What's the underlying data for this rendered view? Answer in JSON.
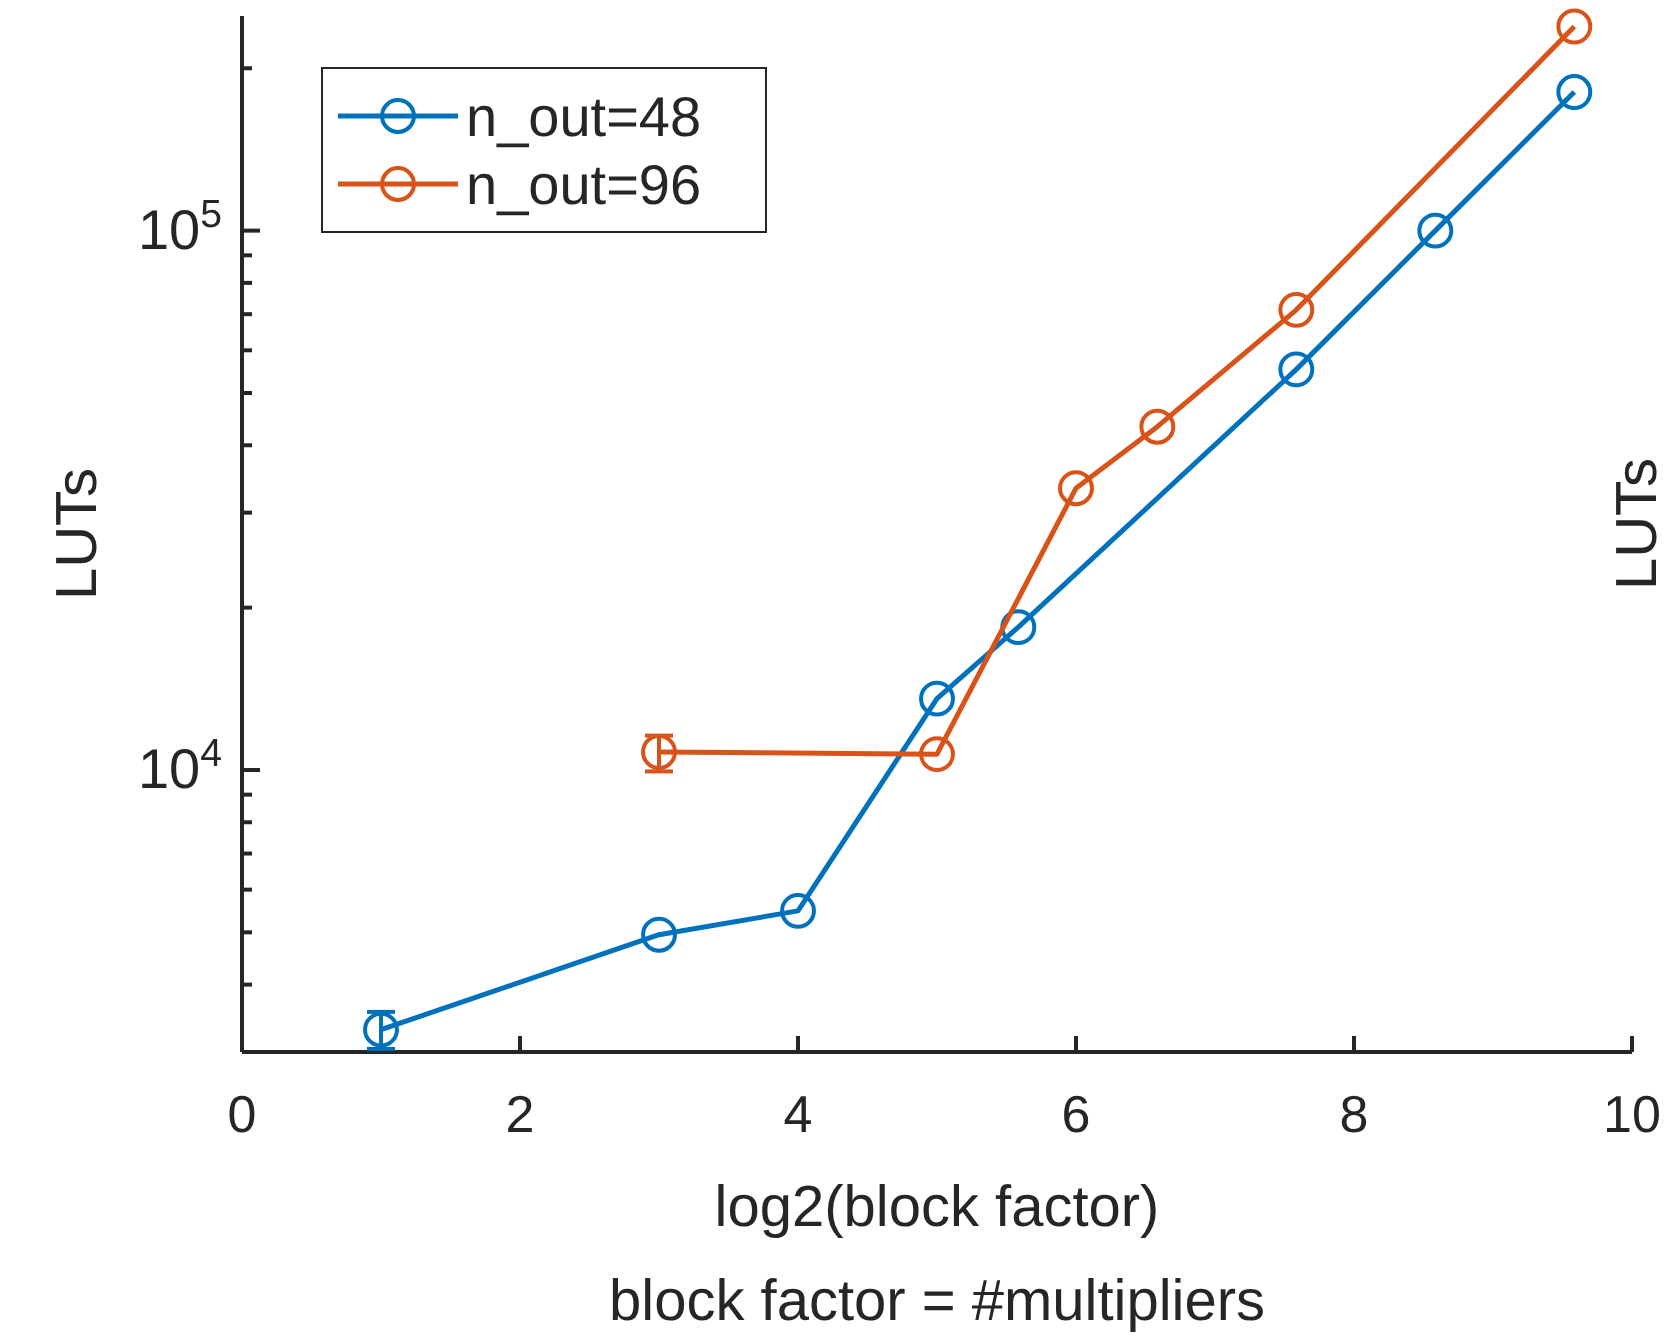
{
  "chart_data": {
    "type": "line",
    "xlabel": "log2(block factor)",
    "ylabel": "LUTs",
    "annotations": [
      "block factor = #multipliers",
      "LUTs"
    ],
    "xlim": [
      0,
      10
    ],
    "xticks": [
      0,
      2,
      4,
      6,
      8,
      10
    ],
    "ylim": [
      3000,
      250000
    ],
    "log": "y",
    "yticks": [
      {
        "value": 3000,
        "label": null
      },
      {
        "value": 4000,
        "label": null
      },
      {
        "value": 5000,
        "label": null
      },
      {
        "value": 6000,
        "label": null
      },
      {
        "value": 7000,
        "label": null
      },
      {
        "value": 8000,
        "label": null
      },
      {
        "value": 9000,
        "label": null
      },
      {
        "value": 10000,
        "label": "10$^{4}$"
      },
      {
        "value": 20000,
        "label": null
      },
      {
        "value": 30000,
        "label": null
      },
      {
        "value": 40000,
        "label": null
      },
      {
        "value": 50000,
        "label": null
      },
      {
        "value": 60000,
        "label": null
      },
      {
        "value": 70000,
        "label": null
      },
      {
        "value": 80000,
        "label": null
      },
      {
        "value": 90000,
        "label": null
      },
      {
        "value": 100000,
        "label": "10$^{5}$"
      },
      {
        "value": 200000,
        "label": null
      }
    ],
    "marker": "circle",
    "legend": "top left",
    "grid": false,
    "series": [
      {
        "name": "n_out=48",
        "color": "#0072bd",
        "x": [
          1,
          3,
          4,
          5,
          5.585,
          7.585,
          8.585,
          9.585
        ],
        "values": [
          3300,
          4950,
          5480,
          13560,
          18400,
          55300,
          100000,
          180700
        ],
        "errors": [
          [
            3040,
            3560
          ],
          null,
          null,
          null,
          null,
          null,
          null,
          null
        ]
      },
      {
        "name": "n_out=96",
        "color": "#d95319",
        "x": [
          3,
          5,
          6,
          6.585,
          7.585,
          9.585
        ],
        "values": [
          10800,
          10700,
          33300,
          43300,
          71300,
          239000
        ],
        "errors": [
          [
            9940,
            11580
          ],
          null,
          null,
          null,
          null,
          null
        ]
      }
    ]
  }
}
